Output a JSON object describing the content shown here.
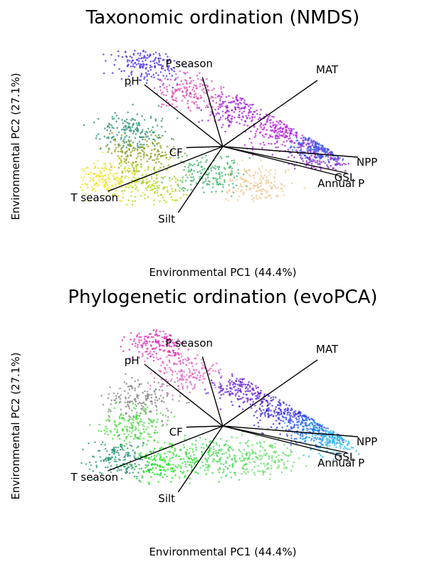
{
  "chart_data": [
    {
      "type": "scatter",
      "title": "Taxonomic ordination (NMDS)",
      "xlabel": "Environmental PC1 (44.4%)",
      "ylabel": "Environmental PC2 (27.1%)",
      "axes_visible": false,
      "xlim": [
        -1,
        1
      ],
      "ylim": [
        -1,
        1
      ],
      "point_clusters": [
        {
          "x": -0.54,
          "y": 0.78,
          "color": "#3a1fe8"
        },
        {
          "x": -0.25,
          "y": 0.5,
          "color": "#e040b0"
        },
        {
          "x": 0.15,
          "y": 0.35,
          "color": "#9b10d8"
        },
        {
          "x": 0.45,
          "y": 0.15,
          "color": "#b812e0"
        },
        {
          "x": 0.72,
          "y": -0.05,
          "color": "#8a15c8"
        },
        {
          "x": 0.8,
          "y": 0.05,
          "color": "#3a5ef0"
        },
        {
          "x": -0.68,
          "y": 0.15,
          "color": "#208a70"
        },
        {
          "x": -0.6,
          "y": -0.05,
          "color": "#8a9a10"
        },
        {
          "x": -0.85,
          "y": -0.3,
          "color": "#f0e010"
        },
        {
          "x": -0.55,
          "y": -0.35,
          "color": "#a8d810"
        },
        {
          "x": -0.1,
          "y": -0.25,
          "color": "#30b060"
        },
        {
          "x": 0.25,
          "y": -0.35,
          "color": "#f0c890"
        }
      ],
      "vectors": [
        {
          "label": "pH",
          "x": -0.58,
          "y": 0.58
        },
        {
          "label": "P season",
          "x": -0.15,
          "y": 0.65
        },
        {
          "label": "MAT",
          "x": 0.7,
          "y": 0.62
        },
        {
          "label": "CF",
          "x": -0.27,
          "y": -0.01
        },
        {
          "label": "NPP",
          "x": 1.0,
          "y": -0.1
        },
        {
          "label": "GSL",
          "x": 0.92,
          "y": -0.25
        },
        {
          "label": "Annual P",
          "x": 0.88,
          "y": -0.28
        },
        {
          "label": "T season",
          "x": -0.85,
          "y": -0.42
        },
        {
          "label": "Silt",
          "x": -0.33,
          "y": -0.62
        }
      ]
    },
    {
      "type": "scatter",
      "title": "Phylogenetic ordination (evoPCA)",
      "xlabel": "Environmental PC1 (44.4%)",
      "ylabel": "Environmental PC2 (27.1%)",
      "axes_visible": false,
      "xlim": [
        -1,
        1
      ],
      "ylim": [
        -1,
        1
      ],
      "point_clusters": [
        {
          "x": -0.45,
          "y": 0.78,
          "color": "#e020b0"
        },
        {
          "x": -0.25,
          "y": 0.5,
          "color": "#e060c0"
        },
        {
          "x": 0.2,
          "y": 0.35,
          "color": "#6010d8"
        },
        {
          "x": 0.5,
          "y": 0.15,
          "color": "#3020e0"
        },
        {
          "x": 0.72,
          "y": 0.0,
          "color": "#1860f0"
        },
        {
          "x": 0.85,
          "y": -0.1,
          "color": "#20b8f0"
        },
        {
          "x": -0.6,
          "y": 0.25,
          "color": "#808080"
        },
        {
          "x": -0.65,
          "y": 0.0,
          "color": "#40d830"
        },
        {
          "x": -0.75,
          "y": -0.3,
          "color": "#209070"
        },
        {
          "x": -0.45,
          "y": -0.35,
          "color": "#10e010"
        },
        {
          "x": -0.05,
          "y": -0.3,
          "color": "#30d840"
        },
        {
          "x": 0.3,
          "y": -0.3,
          "color": "#60e060"
        }
      ],
      "vectors": [
        {
          "label": "pH",
          "x": -0.58,
          "y": 0.58
        },
        {
          "label": "P season",
          "x": -0.15,
          "y": 0.65
        },
        {
          "label": "MAT",
          "x": 0.7,
          "y": 0.62
        },
        {
          "label": "CF",
          "x": -0.27,
          "y": -0.01
        },
        {
          "label": "NPP",
          "x": 1.0,
          "y": -0.1
        },
        {
          "label": "GSL",
          "x": 0.92,
          "y": -0.25
        },
        {
          "label": "Annual P",
          "x": 0.88,
          "y": -0.28
        },
        {
          "label": "T season",
          "x": -0.85,
          "y": -0.42
        },
        {
          "label": "Silt",
          "x": -0.33,
          "y": -0.62
        }
      ]
    }
  ]
}
